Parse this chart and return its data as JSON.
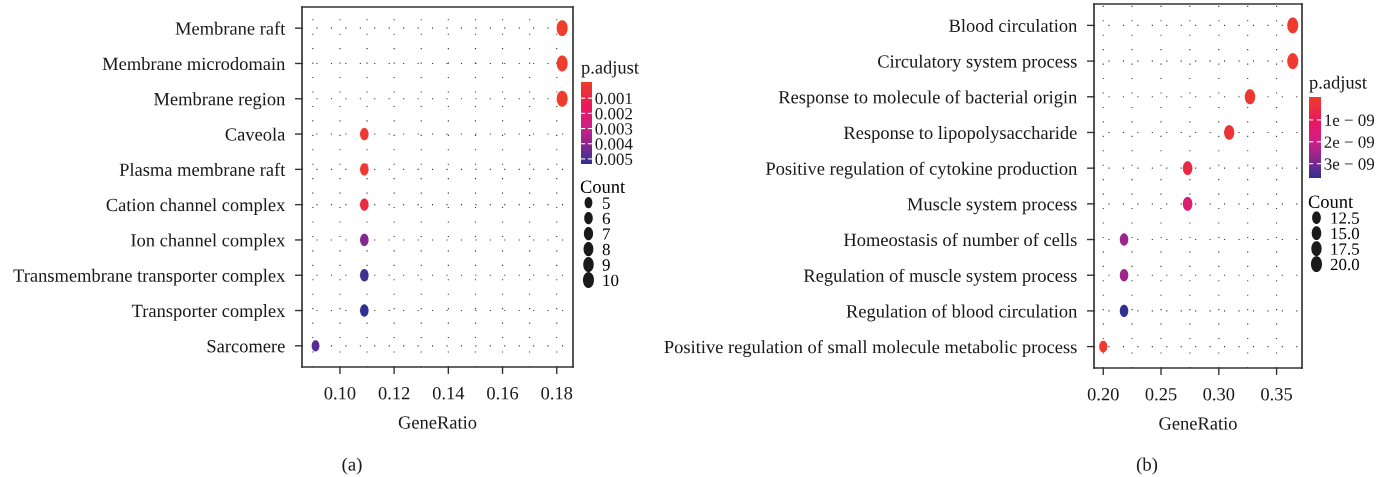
{
  "chart_data": [
    {
      "type": "bubble",
      "orientation": "horizontal",
      "xlabel": "GeneRatio",
      "categories": [
        "Membrane raft",
        "Membrane microdomain",
        "Membrane region",
        "Caveola",
        "Plasma membrane raft",
        "Cation channel complex",
        "Ion channel complex",
        "Transmembrane transporter complex",
        "Transporter complex",
        "Sarcomere"
      ],
      "values": [
        0.182,
        0.182,
        0.182,
        0.109,
        0.109,
        0.109,
        0.109,
        0.109,
        0.109,
        0.091
      ],
      "sizes": [
        10,
        10,
        10,
        6,
        6,
        6,
        6,
        6,
        6,
        5
      ],
      "cvalues": [
        1e-05,
        1e-05,
        1e-05,
        0.0002,
        0.0002,
        0.0008,
        0.0042,
        0.0052,
        0.0054,
        0.0048
      ],
      "clim": [
        0.0054,
        0
      ],
      "cticks": [
        0.001,
        0.002,
        0.003,
        0.004,
        0.005
      ],
      "clabel": "p.adjust",
      "size_legend": [
        5,
        6,
        7,
        8,
        9,
        10
      ],
      "legend_title": "Count",
      "xlim": [
        0.086,
        0.186
      ],
      "xticks": [
        {
          "value": 0.1,
          "label": "0.10"
        },
        0.12,
        0.14,
        0.16,
        0.18
      ],
      "grid": true,
      "annotations": [
        "(a)"
      ]
    },
    {
      "type": "bubble",
      "orientation": "horizontal",
      "xlabel": "GeneRatio",
      "categories": [
        "Blood circulation",
        "Circulatory system process",
        "Response to molecule of bacterial origin",
        "Response to lipopolysaccharide",
        "Positive regulation of cytokine production",
        "Muscle system process",
        "Homeostasis of number of cells",
        "Regulation of muscle system process",
        "Regulation of blood circulation",
        "Positive regulation of small molecule metabolic process"
      ],
      "values": [
        0.364,
        0.364,
        0.327,
        0.309,
        0.273,
        0.273,
        0.218,
        0.218,
        0.218,
        0.2
      ],
      "sizes": [
        20,
        20,
        18,
        17,
        15,
        15,
        12,
        12,
        12,
        11
      ],
      "cvalues": [
        1e-10,
        1e-10,
        2e-10,
        3e-10,
        6e-10,
        1.6e-09,
        2.6e-09,
        2.6e-09,
        3.7e-09,
        1e-10
      ],
      "clim": [
        3.7e-09,
        0
      ],
      "cticks": [
        {
          "value": 1e-09,
          "label": "1e − 09"
        },
        {
          "value": 2e-09,
          "label": "2e − 09"
        },
        {
          "value": 3e-09,
          "label": "3e − 09"
        }
      ],
      "clabel": "p.adjust",
      "size_legend": [
        12.5,
        {
          "value": 15,
          "label": "15.0"
        },
        17.5,
        {
          "value": 20,
          "label": "20.0"
        }
      ],
      "legend_title": "Count",
      "xlim": [
        0.192,
        0.372
      ],
      "xticks": [
        {
          "value": 0.2,
          "label": "0.20"
        },
        0.25,
        {
          "value": 0.3,
          "label": "0.30"
        },
        0.35
      ],
      "grid": true,
      "annotations": [
        "(b)"
      ]
    }
  ]
}
